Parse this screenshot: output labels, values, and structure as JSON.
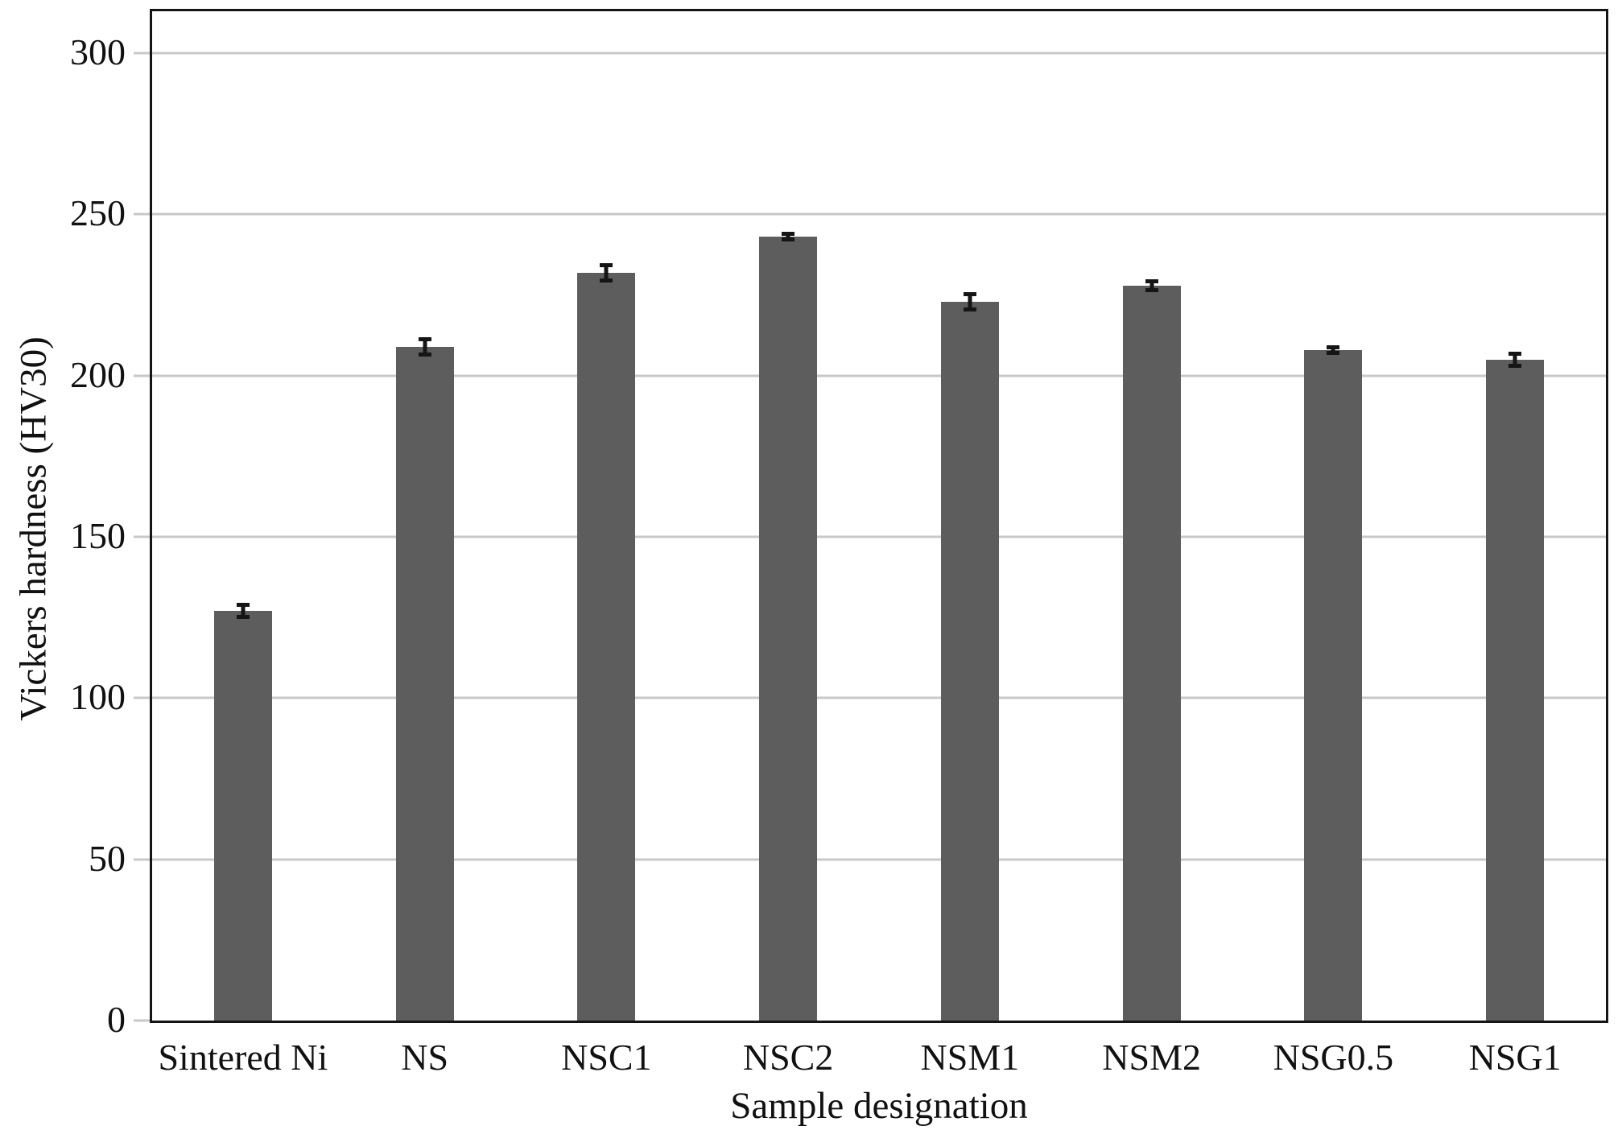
{
  "chart_data": {
    "type": "bar",
    "xlabel": "Sample designation",
    "ylabel": "Vickers hardness (HV30)",
    "categories": [
      "Sintered Ni",
      "NS",
      "NSC1",
      "NSC2",
      "NSM1",
      "NSM2",
      "NSG0.5",
      "NSG1"
    ],
    "series": [
      {
        "name": "Vickers hardness (HV30)",
        "values": [
          127,
          209,
          232,
          243,
          223,
          228,
          208,
          205
        ],
        "error_bars": [
          2.5,
          3,
          3,
          1.5,
          3,
          2,
          1.5,
          2.5
        ]
      }
    ],
    "ylim": [
      0,
      313
    ],
    "yticks": [
      0,
      50,
      100,
      150,
      200,
      250,
      300
    ],
    "grid": "horizontal",
    "legend": "none",
    "colors": {
      "bar": "#5d5d5d",
      "gridline": "#c8c8c8",
      "frame": "#151515",
      "error_bar": "#151515",
      "text": "#111111",
      "background": "#ffffff"
    }
  }
}
